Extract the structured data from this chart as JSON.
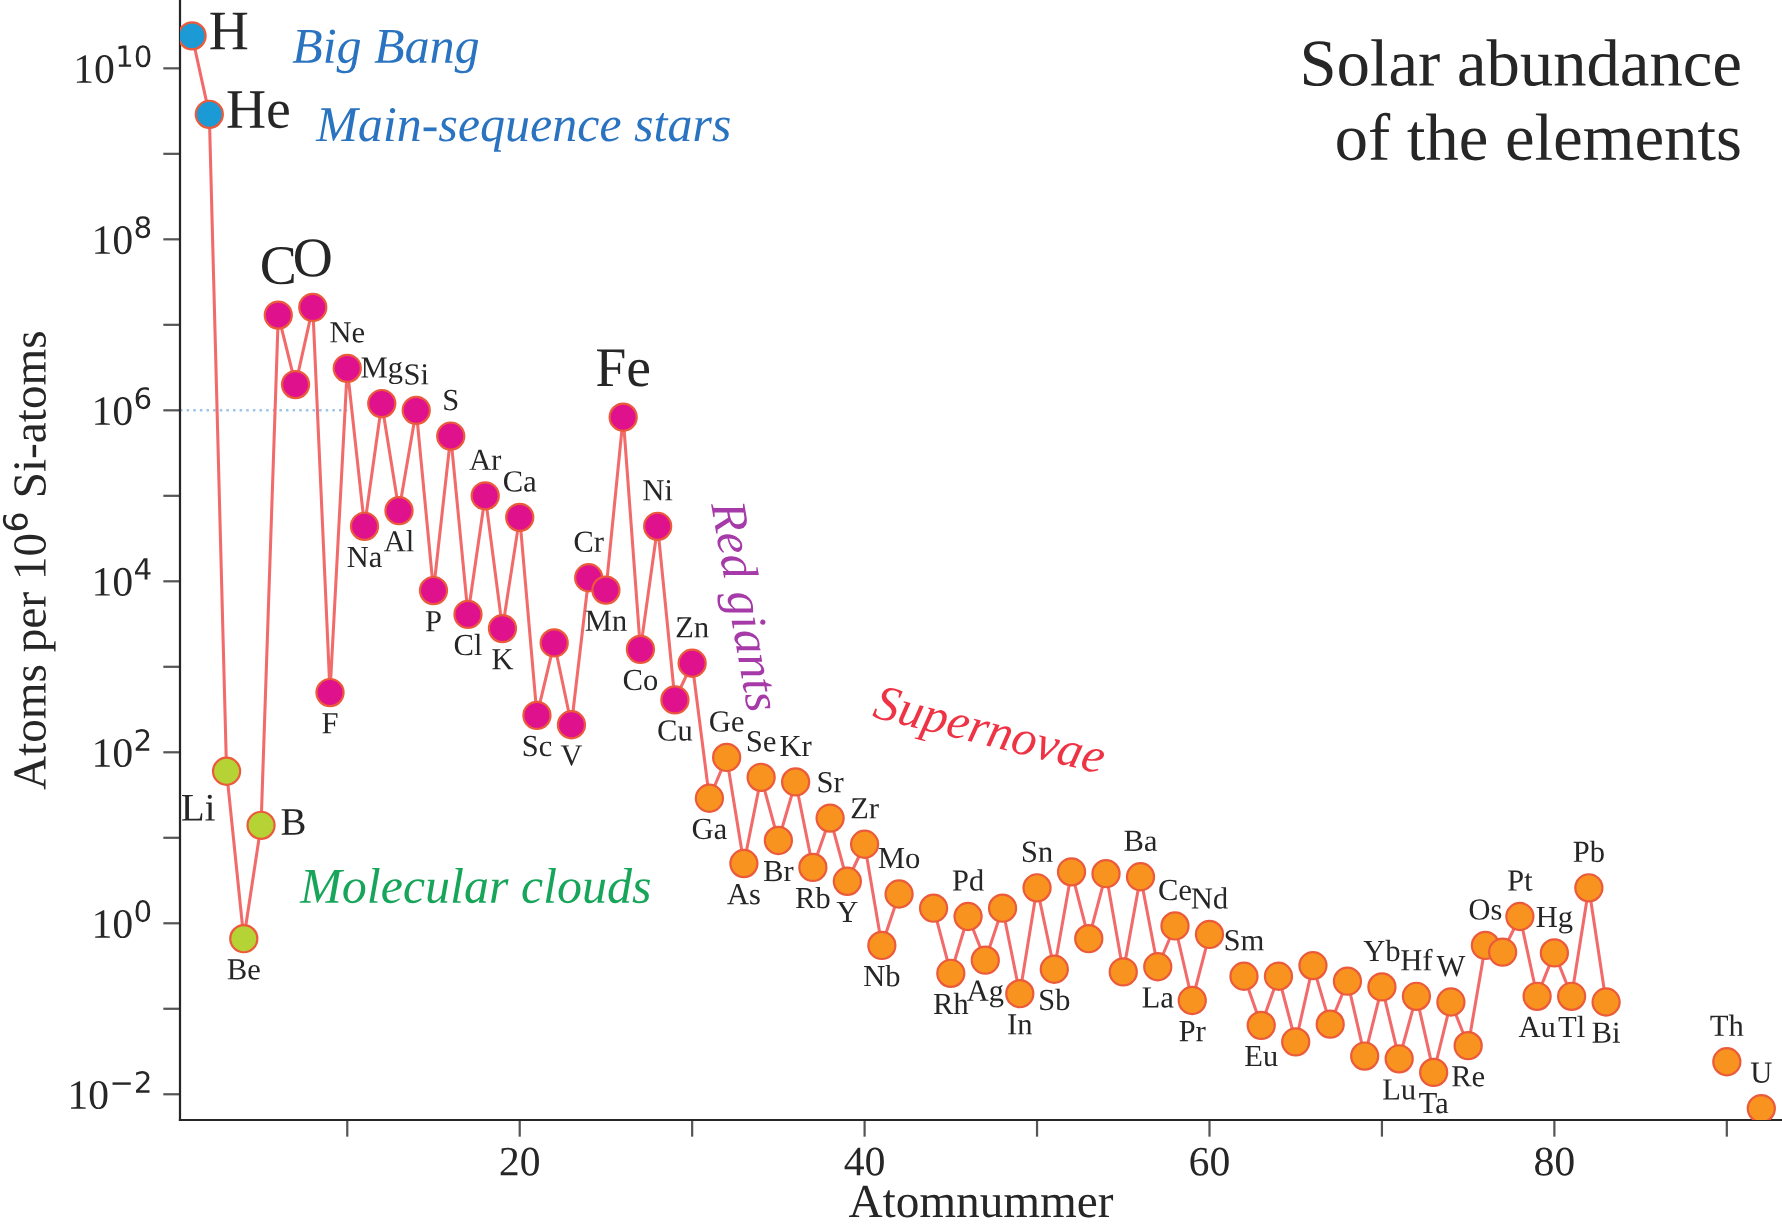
{
  "chart_data": {
    "type": "line",
    "title": "Solar abundance\nof the elements",
    "xlabel": "Atomnummer",
    "ylabel": "Atoms per 10$^{6}$ Si-atoms",
    "x": [
      1,
      2,
      3,
      4,
      5,
      6,
      7,
      8,
      9,
      10,
      11,
      12,
      13,
      14,
      15,
      16,
      17,
      18,
      19,
      20,
      21,
      22,
      23,
      24,
      25,
      26,
      27,
      28,
      29,
      30,
      31,
      32,
      33,
      34,
      35,
      36,
      37,
      38,
      39,
      40,
      41,
      42,
      43,
      44,
      45,
      46,
      47,
      48,
      49,
      50,
      51,
      52,
      53,
      54,
      55,
      56,
      57,
      58,
      59,
      60,
      61,
      62,
      63,
      64,
      65,
      66,
      67,
      68,
      69,
      70,
      71,
      72,
      73,
      74,
      75,
      76,
      77,
      78,
      79,
      80,
      81,
      82,
      83,
      84,
      85,
      86,
      87,
      88,
      89,
      90,
      91,
      92
    ],
    "series": [
      {
        "color": "#f26b6b",
        "marker": "circle",
        "line_style": "solid",
        "values": [
          24000000000.0,
          2900000000.0,
          60,
          0.66,
          14,
          13000000.0,
          2000000.0,
          16000000.0,
          500,
          3100000.0,
          44000.0,
          1200000.0,
          67000.0,
          1000000.0,
          7800,
          500000.0,
          4100,
          100000.0,
          2800,
          56000.0,
          270,
          1900,
          210,
          11000.0,
          7900,
          830000.0,
          1600,
          44000.0,
          410,
          1100,
          29,
          87,
          5.0,
          51,
          9.3,
          45,
          4.5,
          17,
          3.1,
          8.4,
          0.55,
          2.2,
          null,
          1.5,
          0.26,
          1.2,
          0.37,
          1.5,
          0.15,
          2.6,
          0.29,
          4.0,
          0.66,
          3.8,
          0.27,
          3.5,
          0.31,
          0.93,
          0.125,
          0.74,
          null,
          0.24,
          0.064,
          0.24,
          0.041,
          0.32,
          0.066,
          0.21,
          0.028,
          0.18,
          0.026,
          0.14,
          0.018,
          0.12,
          0.037,
          0.55,
          0.46,
          1.2,
          0.14,
          0.45,
          0.14,
          2.6,
          0.12,
          null,
          null,
          null,
          null,
          null,
          null,
          0.024,
          null,
          0.0068
        ],
        "colors": [
          "#1b9ad6",
          "#1b9ad6",
          "#b5d334",
          "#b5d334",
          "#b5d334",
          "#e0118c",
          "#e0118c",
          "#e0118c",
          "#e0118c",
          "#e0118c",
          "#e0118c",
          "#e0118c",
          "#e0118c",
          "#e0118c",
          "#e0118c",
          "#e0118c",
          "#e0118c",
          "#e0118c",
          "#e0118c",
          "#e0118c",
          "#e0118c",
          "#e0118c",
          "#e0118c",
          "#e0118c",
          "#e0118c",
          "#e0118c",
          "#e0118c",
          "#e0118c",
          "#e0118c",
          "#e0118c",
          "#f7931e",
          "#f7931e",
          "#f7931e",
          "#f7931e",
          "#f7931e",
          "#f7931e",
          "#f7931e",
          "#f7931e",
          "#f7931e",
          "#f7931e",
          "#f7931e",
          "#f7931e",
          null,
          "#f7931e",
          "#f7931e",
          "#f7931e",
          "#f7931e",
          "#f7931e",
          "#f7931e",
          "#f7931e",
          "#f7931e",
          "#f7931e",
          "#f7931e",
          "#f7931e",
          "#f7931e",
          "#f7931e",
          "#f7931e",
          "#f7931e",
          "#f7931e",
          "#f7931e",
          null,
          "#f7931e",
          "#f7931e",
          "#f7931e",
          "#f7931e",
          "#f7931e",
          "#f7931e",
          "#f7931e",
          "#f7931e",
          "#f7931e",
          "#f7931e",
          "#f7931e",
          "#f7931e",
          "#f7931e",
          "#f7931e",
          "#f7931e",
          "#f7931e",
          "#f7931e",
          "#f7931e",
          "#f7931e",
          "#f7931e",
          "#f7931e",
          "#f7931e",
          null,
          null,
          null,
          null,
          null,
          null,
          "#f7931e",
          null,
          "#f7931e"
        ]
      }
    ],
    "log": "y",
    "xlim": [
      0.3,
      93.2
    ],
    "ylim": [
      0.005,
      63000000000.0
    ],
    "xticks": [
      {
        "value": 10,
        "label": null
      },
      20,
      {
        "value": 30,
        "label": null
      },
      40,
      {
        "value": 50,
        "label": null
      },
      60,
      {
        "value": 70,
        "label": null
      },
      80,
      {
        "value": 90,
        "label": null
      }
    ],
    "yticks": [
      {
        "value": 0.01,
        "label": "10$^{−2}$"
      },
      {
        "value": 0.1,
        "label": null
      },
      {
        "value": 1,
        "label": "10$^{0}$"
      },
      {
        "value": 10,
        "label": null
      },
      {
        "value": 100,
        "label": "10$^{2}$"
      },
      {
        "value": 1000,
        "label": null
      },
      {
        "value": 10000.0,
        "label": "10$^{4}$"
      },
      {
        "value": 100000.0,
        "label": null
      },
      {
        "value": 1000000.0,
        "label": "10$^{6}$"
      },
      {
        "value": 10000000.0,
        "label": null
      },
      {
        "value": 100000000.0,
        "label": "10$^{8}$"
      },
      {
        "value": 1000000000.0,
        "label": null
      },
      {
        "value": 10000000000.0,
        "label": "10$^{10}$"
      }
    ],
    "ref_lines": [
      {
        "axis": "y",
        "value": 1000000.0,
        "color": "#9cc3e8",
        "line_style": "dotted"
      }
    ],
    "grid": false,
    "legend": false,
    "annotations": [
      "Big Bang",
      "Main-sequence stars",
      "Molecular clouds",
      "Red giants",
      "Supernovae",
      {
        "text": "H",
        "x": 1,
        "y": 24000000000.0
      },
      {
        "text": "He",
        "x": 2,
        "y": 2900000000.0
      },
      {
        "text": "Li",
        "x": 3,
        "y": 60
      },
      {
        "text": "Be",
        "x": 4,
        "y": 0.66
      },
      {
        "text": "B",
        "x": 5,
        "y": 14
      },
      {
        "text": "C",
        "x": 6,
        "y": 13000000.0
      },
      {
        "text": "O",
        "x": 8,
        "y": 16000000.0
      },
      {
        "text": "F",
        "x": 9,
        "y": 500
      },
      {
        "text": "Ne",
        "x": 10,
        "y": 3100000.0
      },
      {
        "text": "Na",
        "x": 11,
        "y": 44000.0
      },
      {
        "text": "Mg",
        "x": 12,
        "y": 1200000.0
      },
      {
        "text": "Al",
        "x": 13,
        "y": 67000.0
      },
      {
        "text": "Si",
        "x": 14,
        "y": 1000000.0
      },
      {
        "text": "P",
        "x": 15,
        "y": 7800
      },
      {
        "text": "S",
        "x": 16,
        "y": 500000.0
      },
      {
        "text": "Cl",
        "x": 17,
        "y": 4100
      },
      {
        "text": "Ar",
        "x": 18,
        "y": 100000.0
      },
      {
        "text": "K",
        "x": 19,
        "y": 2800
      },
      {
        "text": "Ca",
        "x": 20,
        "y": 56000.0
      },
      {
        "text": "Sc",
        "x": 21,
        "y": 270
      },
      {
        "text": "V",
        "x": 23,
        "y": 210
      },
      {
        "text": "Cr",
        "x": 24,
        "y": 11000.0
      },
      {
        "text": "Mn",
        "x": 25,
        "y": 7900
      },
      {
        "text": "Fe",
        "x": 26,
        "y": 830000.0
      },
      {
        "text": "Co",
        "x": 27,
        "y": 1600
      },
      {
        "text": "Ni",
        "x": 28,
        "y": 44000.0
      },
      {
        "text": "Cu",
        "x": 29,
        "y": 410
      },
      {
        "text": "Zn",
        "x": 30,
        "y": 1100
      },
      {
        "text": "Ga",
        "x": 31,
        "y": 29
      },
      {
        "text": "Ge",
        "x": 32,
        "y": 87
      },
      {
        "text": "As",
        "x": 33,
        "y": 5.0
      },
      {
        "text": "Se",
        "x": 34,
        "y": 51
      },
      {
        "text": "Br",
        "x": 35,
        "y": 9.3
      },
      {
        "text": "Kr",
        "x": 36,
        "y": 45
      },
      {
        "text": "Rb",
        "x": 37,
        "y": 4.5
      },
      {
        "text": "Sr",
        "x": 38,
        "y": 17
      },
      {
        "text": "Y",
        "x": 39,
        "y": 3.1
      },
      {
        "text": "Zr",
        "x": 40,
        "y": 8.4
      },
      {
        "text": "Nb",
        "x": 41,
        "y": 0.55
      },
      {
        "text": "Mo",
        "x": 42,
        "y": 2.2
      },
      {
        "text": "Rh",
        "x": 45,
        "y": 0.26
      },
      {
        "text": "Pd",
        "x": 46,
        "y": 1.2
      },
      {
        "text": "Ag",
        "x": 47,
        "y": 0.37
      },
      {
        "text": "In",
        "x": 49,
        "y": 0.15
      },
      {
        "text": "Sn",
        "x": 50,
        "y": 2.6
      },
      {
        "text": "Sb",
        "x": 51,
        "y": 0.29
      },
      {
        "text": "Ba",
        "x": 56,
        "y": 3.5
      },
      {
        "text": "La",
        "x": 57,
        "y": 0.31
      },
      {
        "text": "Ce",
        "x": 58,
        "y": 0.93
      },
      {
        "text": "Pr",
        "x": 59,
        "y": 0.125
      },
      {
        "text": "Nd",
        "x": 60,
        "y": 0.74
      },
      {
        "text": "Sm",
        "x": 62,
        "y": 0.24
      },
      {
        "text": "Eu",
        "x": 63,
        "y": 0.064
      },
      {
        "text": "Yb",
        "x": 70,
        "y": 0.18
      },
      {
        "text": "Lu",
        "x": 71,
        "y": 0.026
      },
      {
        "text": "Hf",
        "x": 72,
        "y": 0.14
      },
      {
        "text": "Ta",
        "x": 73,
        "y": 0.018
      },
      {
        "text": "W",
        "x": 74,
        "y": 0.12
      },
      {
        "text": "Re",
        "x": 75,
        "y": 0.037
      },
      {
        "text": "Os",
        "x": 76,
        "y": 0.55
      },
      {
        "text": "Pt",
        "x": 78,
        "y": 1.2
      },
      {
        "text": "Au",
        "x": 79,
        "y": 0.14
      },
      {
        "text": "Hg",
        "x": 80,
        "y": 0.45
      },
      {
        "text": "Tl",
        "x": 81,
        "y": 0.14
      },
      {
        "text": "Pb",
        "x": 82,
        "y": 2.6
      },
      {
        "text": "Bi",
        "x": 83,
        "y": 0.12
      },
      {
        "text": "Th",
        "x": 90,
        "y": 0.024
      },
      {
        "text": "U",
        "x": 92,
        "y": 0.0068
      }
    ]
  }
}
